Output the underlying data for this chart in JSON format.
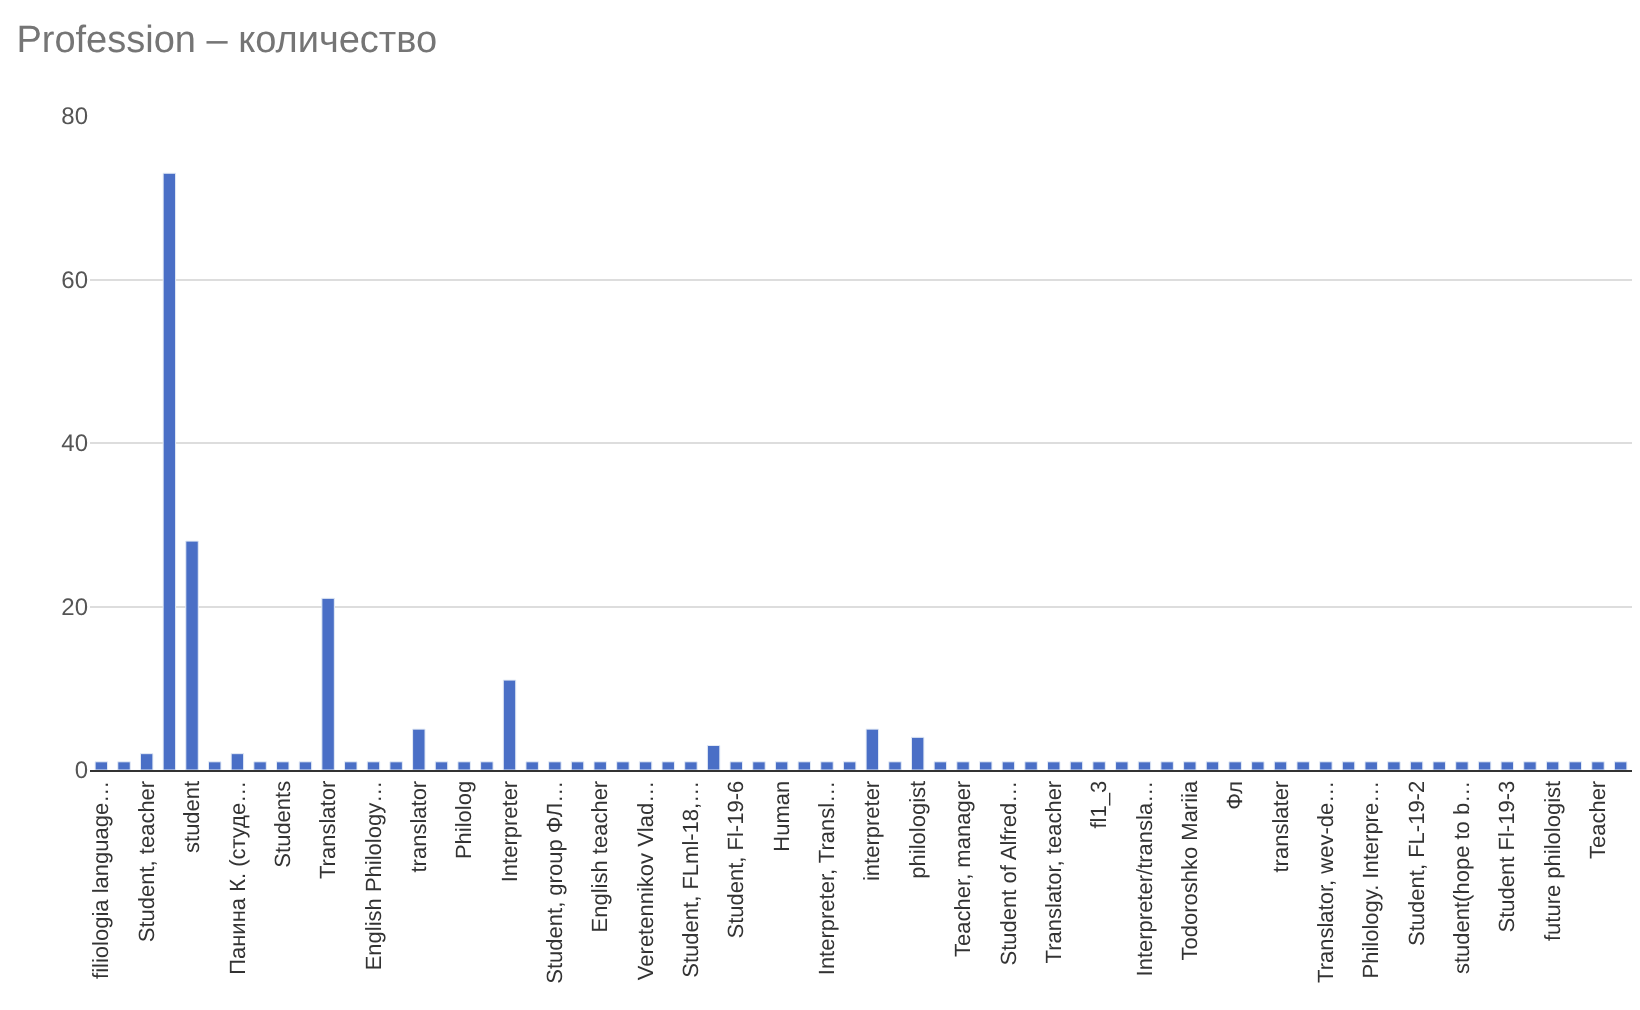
{
  "chart_data": {
    "type": "bar",
    "title": "Profession – количество",
    "categories": [
      "filiologia language…",
      null,
      "Student, teacher",
      null,
      "student",
      null,
      "Панина К. (студе…",
      null,
      "Students",
      null,
      "Translator",
      null,
      "English Philology…",
      null,
      "translator",
      null,
      "Philolog",
      null,
      "Interpreter",
      null,
      "Student, group ФЛ…",
      null,
      "English teacher",
      null,
      "Veretennikov Vlad…",
      null,
      "Student, FLml-18,…",
      null,
      "Student, Fl-19-6",
      null,
      "Human",
      null,
      "Interpreter, Transl…",
      null,
      "interpreter",
      null,
      "philologist",
      null,
      "Teacher, manager",
      null,
      "Student of Alfred…",
      null,
      "Translator, teacher",
      null,
      "fl1_3",
      null,
      "Interpreter/transla…",
      null,
      "Todoroshko Mariia",
      null,
      "Фл",
      null,
      "translater",
      null,
      "Translator, wev-de…",
      null,
      "Philology. Interpre…",
      null,
      "Student, FL-19-2",
      null,
      "student(hope to b…",
      null,
      "Student Fl-19-3",
      null,
      "future philologist",
      null,
      "Teacher",
      null
    ],
    "values": [
      1,
      1,
      2,
      73,
      28,
      1,
      2,
      1,
      1,
      1,
      21,
      1,
      1,
      1,
      5,
      1,
      1,
      1,
      11,
      1,
      1,
      1,
      1,
      1,
      1,
      1,
      1,
      3,
      1,
      1,
      1,
      1,
      1,
      1,
      5,
      1,
      4,
      1,
      1,
      1,
      1,
      1,
      1,
      1,
      1,
      1,
      1,
      1,
      1,
      1,
      1,
      1,
      1,
      1,
      1,
      1,
      1,
      1,
      1,
      1,
      1,
      1,
      1,
      1,
      1,
      1,
      1,
      1
    ],
    "color": "#4a6fc6",
    "ylim": [
      0,
      80
    ],
    "yticks": [
      0,
      20,
      40,
      60,
      80
    ],
    "grid": "y"
  }
}
